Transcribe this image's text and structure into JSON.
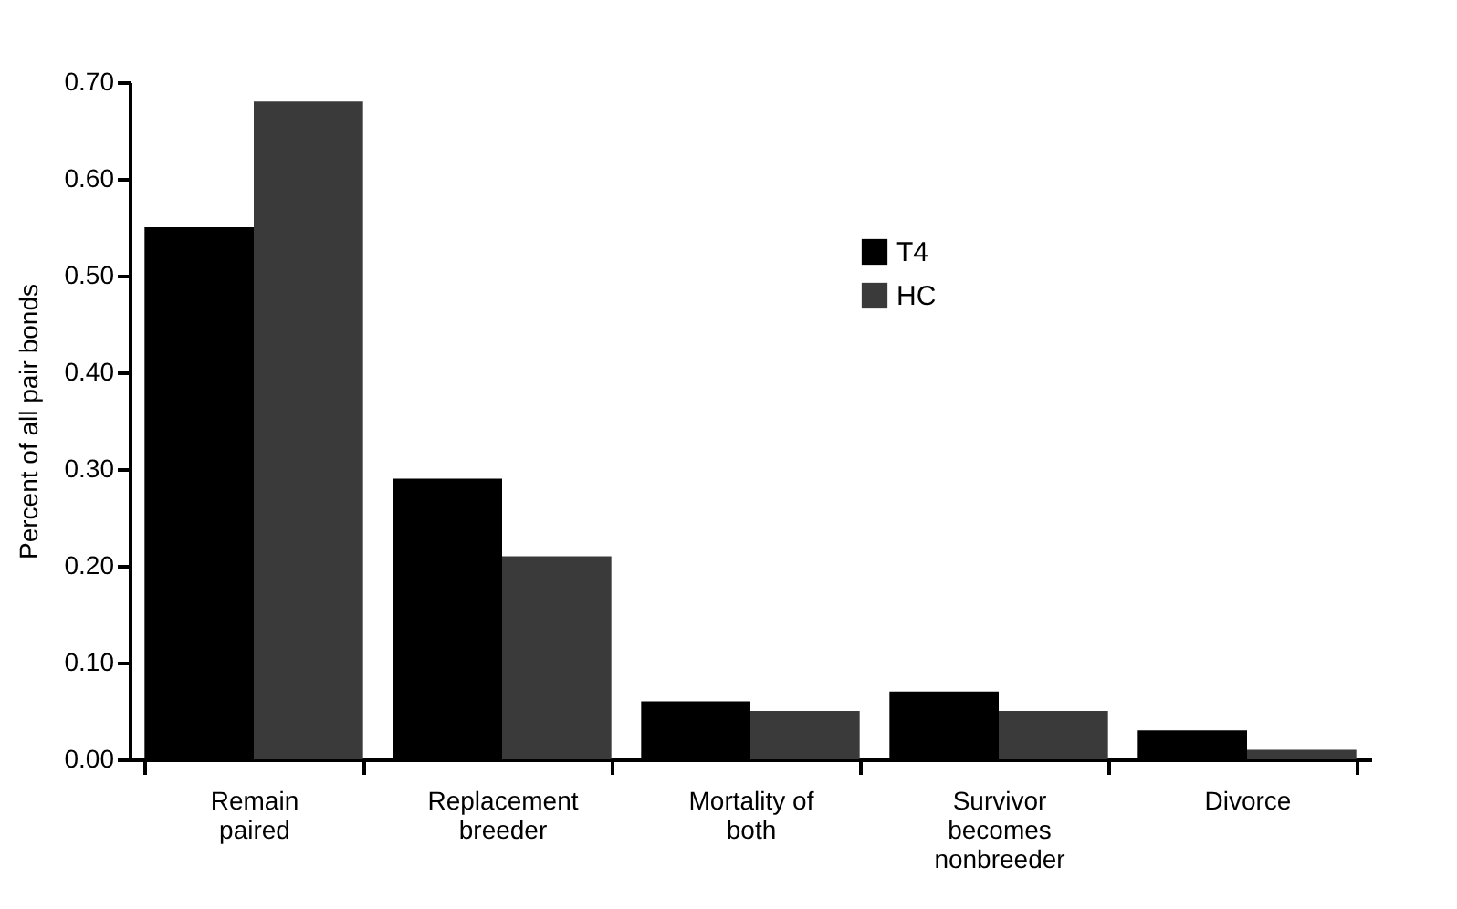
{
  "chart_data": {
    "type": "bar",
    "ylabel": "Percent of all pair bonds",
    "categories": [
      "Remain paired",
      "Replacement breeder",
      "Mortality of both",
      "Survivor becomes nonbreeder",
      "Divorce"
    ],
    "series": [
      {
        "name": "T4",
        "color": "#000000",
        "values": [
          0.55,
          0.29,
          0.06,
          0.07,
          0.03
        ]
      },
      {
        "name": "HC",
        "color": "#3a3a3a",
        "values": [
          0.68,
          0.21,
          0.05,
          0.05,
          0.01
        ]
      }
    ],
    "ylim": [
      0,
      0.7
    ],
    "yticks": [
      {
        "value": 0,
        "label": "0.00"
      },
      {
        "value": 0.1,
        "label": "0.10"
      },
      {
        "value": 0.2,
        "label": "0.20"
      },
      {
        "value": 0.3,
        "label": "0.30"
      },
      {
        "value": 0.4,
        "label": "0.40"
      },
      {
        "value": 0.5,
        "label": "0.50"
      },
      {
        "value": 0.6,
        "label": "0.60"
      },
      {
        "value": 0.7,
        "label": "0.70"
      }
    ],
    "grid": false,
    "legend": "top right"
  }
}
